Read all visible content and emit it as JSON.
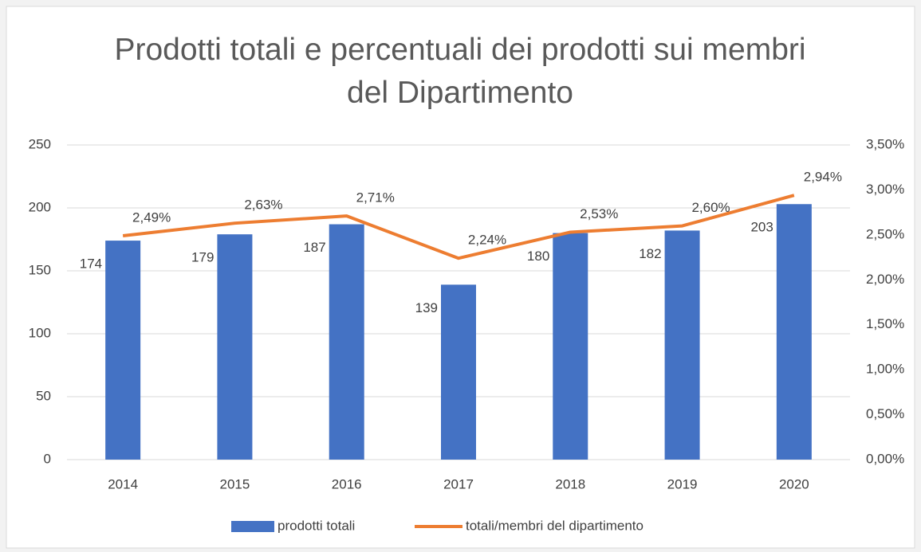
{
  "chart_data": {
    "type": "combo",
    "title": "Prodotti totali e percentuali dei prodotti sui membri del Dipartimento",
    "categories": [
      "2014",
      "2015",
      "2016",
      "2017",
      "2018",
      "2019",
      "2020"
    ],
    "series": [
      {
        "name": "prodotti totali",
        "type": "bar",
        "color": "#4472c4",
        "values": [
          174,
          179,
          187,
          139,
          180,
          182,
          203
        ]
      },
      {
        "name": "totali/membri del dipartimento",
        "type": "line",
        "axis": "y2",
        "color": "#ed7d31",
        "values": [
          2.49,
          2.63,
          2.71,
          2.24,
          2.53,
          2.6,
          2.94
        ],
        "value_labels": [
          "2,49%",
          "2,63%",
          "2,71%",
          "2,24%",
          "2,53%",
          "2,60%",
          "2,94%"
        ]
      }
    ],
    "ylim": [
      0,
      250
    ],
    "yticks": [
      0,
      50,
      100,
      150,
      200,
      250
    ],
    "y2lim": [
      0,
      3.5
    ],
    "y2ticks": [
      {
        "value": 0,
        "label": "0,00%"
      },
      {
        "value": 0.5,
        "label": "0,50%"
      },
      {
        "value": 1,
        "label": "1,00%"
      },
      {
        "value": 1.5,
        "label": "1,50%"
      },
      {
        "value": 2,
        "label": "2,00%"
      },
      {
        "value": 2.5,
        "label": "2,50%"
      },
      {
        "value": 3,
        "label": "3,00%"
      },
      {
        "value": 3.5,
        "label": "3,50%"
      }
    ],
    "grid": true,
    "legend": "bottom"
  }
}
